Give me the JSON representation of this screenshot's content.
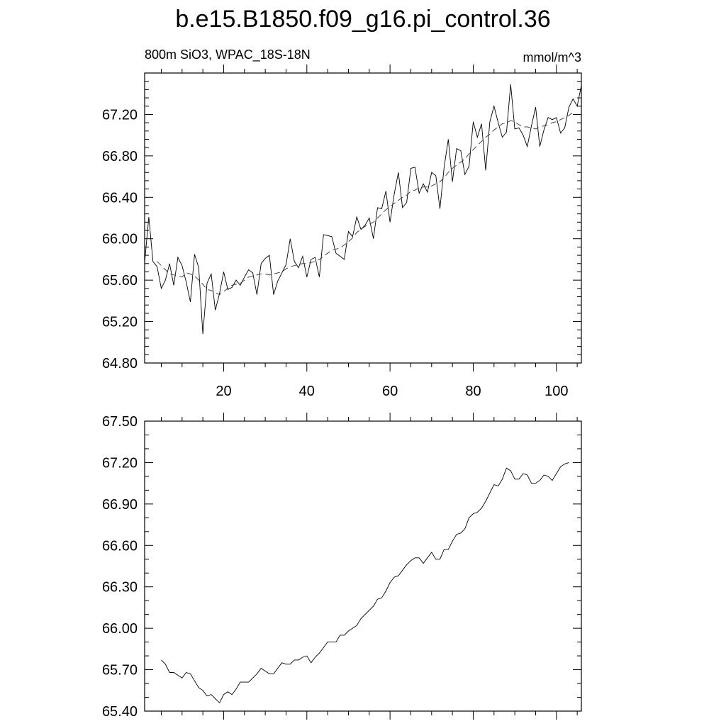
{
  "title": "b.e15.B1850.f09_g16.pi_control.36",
  "left_subtitle": "800m SiO3, WPAC_18S-18N",
  "right_subtitle": "mmol/m^3",
  "chart_data": [
    {
      "type": "line",
      "title": "b.e15.B1850.f09_g16.pi_control.36",
      "left_subtitle": "800m SiO3, WPAC_18S-18N",
      "right_subtitle": "mmol/m^3",
      "xlim": [
        1,
        106
      ],
      "ylim": [
        64.8,
        67.6
      ],
      "xticks": [
        20,
        40,
        60,
        80,
        100
      ],
      "xtick_labels": [
        "20",
        "40",
        "60",
        "80",
        "100"
      ],
      "yticks": [
        64.8,
        65.2,
        65.6,
        66.0,
        66.4,
        66.8,
        67.2
      ],
      "ytick_labels": [
        "64.80",
        "65.20",
        "65.60",
        "66.00",
        "66.40",
        "66.80",
        "67.20"
      ],
      "grid": false,
      "x": [
        1,
        2,
        3,
        4,
        5,
        6,
        7,
        8,
        9,
        10,
        11,
        12,
        13,
        14,
        15,
        16,
        17,
        18,
        19,
        20,
        21,
        22,
        23,
        24,
        25,
        26,
        27,
        28,
        29,
        30,
        31,
        32,
        33,
        34,
        35,
        36,
        37,
        38,
        39,
        40,
        41,
        42,
        43,
        44,
        45,
        46,
        47,
        48,
        49,
        50,
        51,
        52,
        53,
        54,
        55,
        56,
        57,
        58,
        59,
        60,
        61,
        62,
        63,
        64,
        65,
        66,
        67,
        68,
        69,
        70,
        71,
        72,
        73,
        74,
        75,
        76,
        77,
        78,
        79,
        80,
        81,
        82,
        83,
        84,
        85,
        86,
        87,
        88,
        89,
        90,
        91,
        92,
        93,
        94,
        95,
        96,
        97,
        98,
        99,
        100,
        101,
        102,
        103,
        104,
        105,
        106
      ],
      "series": [
        {
          "style": "solid",
          "values": [
            65.77,
            66.21,
            65.78,
            65.73,
            65.52,
            65.6,
            65.76,
            65.55,
            65.82,
            65.74,
            65.58,
            65.39,
            65.85,
            65.72,
            65.08,
            65.57,
            65.66,
            65.31,
            65.47,
            65.68,
            65.51,
            65.53,
            65.6,
            65.55,
            65.63,
            65.7,
            65.67,
            65.46,
            65.76,
            65.81,
            65.84,
            65.46,
            65.59,
            65.67,
            65.75,
            66.0,
            65.78,
            65.72,
            65.83,
            65.63,
            65.8,
            65.82,
            65.63,
            66.04,
            66.03,
            66.02,
            65.86,
            65.83,
            65.8,
            66.07,
            66.02,
            66.21,
            66.09,
            66.13,
            66.2,
            66.0,
            66.3,
            66.29,
            66.46,
            66.16,
            66.43,
            66.64,
            66.3,
            66.35,
            66.68,
            66.69,
            66.44,
            66.53,
            66.45,
            66.64,
            66.61,
            66.29,
            66.69,
            66.96,
            66.55,
            66.87,
            66.85,
            66.62,
            66.7,
            67.13,
            66.98,
            67.11,
            66.66,
            67.13,
            67.28,
            67.12,
            66.98,
            67.03,
            67.49,
            67.06,
            67.07,
            67.0,
            66.89,
            67.09,
            67.27,
            66.89,
            67.05,
            67.17,
            67.15,
            67.17,
            67.02,
            67.07,
            67.27,
            67.35,
            67.28,
            67.48
          ]
        },
        {
          "style": "dashed",
          "values": [
            null,
            null,
            null,
            65.78,
            65.74,
            65.7,
            65.66,
            65.65,
            65.64,
            65.63,
            65.67,
            65.66,
            65.64,
            65.6,
            65.56,
            65.51,
            65.5,
            65.48,
            65.46,
            65.49,
            65.52,
            65.55,
            65.56,
            65.57,
            65.6,
            65.63,
            65.64,
            65.65,
            65.66,
            65.66,
            65.65,
            65.66,
            65.67,
            65.68,
            65.71,
            65.73,
            65.74,
            65.75,
            65.76,
            65.76,
            65.77,
            65.78,
            65.8,
            65.83,
            65.86,
            65.89,
            65.9,
            65.91,
            65.94,
            65.97,
            66.01,
            66.06,
            66.09,
            66.12,
            66.14,
            66.16,
            66.2,
            66.24,
            66.28,
            66.31,
            66.34,
            66.37,
            66.4,
            66.42,
            66.46,
            66.47,
            66.49,
            66.5,
            66.5,
            66.51,
            66.53,
            66.55,
            66.59,
            66.64,
            66.68,
            66.71,
            66.74,
            66.77,
            66.82,
            66.86,
            66.9,
            66.94,
            66.98,
            67.01,
            67.05,
            67.08,
            67.11,
            67.12,
            67.14,
            67.13,
            67.1,
            67.08,
            67.08,
            67.07,
            67.06,
            67.08,
            67.09,
            67.1,
            67.12,
            67.13,
            67.15,
            67.17,
            67.19,
            67.22,
            null,
            null
          ]
        }
      ]
    },
    {
      "type": "line",
      "xlim": [
        1,
        106
      ],
      "ylim": [
        65.4,
        67.5
      ],
      "xticks": [
        20,
        40,
        60,
        80,
        100
      ],
      "xtick_labels": [],
      "yticks": [
        65.4,
        65.7,
        66.0,
        66.3,
        66.6,
        66.9,
        67.2,
        67.5
      ],
      "ytick_labels": [
        "65.40",
        "65.70",
        "66.00",
        "66.30",
        "66.60",
        "66.90",
        "67.20",
        "67.50"
      ],
      "grid": false,
      "x": [
        5,
        6,
        7,
        8,
        9,
        10,
        11,
        12,
        13,
        14,
        15,
        16,
        17,
        18,
        19,
        20,
        21,
        22,
        23,
        24,
        25,
        26,
        27,
        28,
        29,
        30,
        31,
        32,
        33,
        34,
        35,
        36,
        37,
        38,
        39,
        40,
        41,
        42,
        43,
        44,
        45,
        46,
        47,
        48,
        49,
        50,
        51,
        52,
        53,
        54,
        55,
        56,
        57,
        58,
        59,
        60,
        61,
        62,
        63,
        64,
        65,
        66,
        67,
        68,
        69,
        70,
        71,
        72,
        73,
        74,
        75,
        76,
        77,
        78,
        79,
        80,
        81,
        82,
        83,
        84,
        85,
        86,
        87,
        88,
        89,
        90,
        91,
        92,
        93,
        94,
        95,
        96,
        97,
        98,
        99,
        100,
        101,
        102,
        103
      ],
      "series": [
        {
          "style": "solid",
          "values": [
            65.77,
            65.74,
            65.68,
            65.68,
            65.66,
            65.64,
            65.68,
            65.67,
            65.62,
            65.57,
            65.55,
            65.51,
            65.52,
            65.49,
            65.46,
            65.52,
            65.54,
            65.52,
            65.56,
            65.61,
            65.61,
            65.61,
            65.64,
            65.67,
            65.71,
            65.69,
            65.67,
            65.67,
            65.71,
            65.75,
            65.74,
            65.74,
            65.77,
            65.77,
            65.79,
            65.8,
            65.75,
            65.79,
            65.82,
            65.86,
            65.9,
            65.9,
            65.9,
            65.95,
            65.95,
            65.98,
            66.0,
            66.02,
            66.07,
            66.1,
            66.13,
            66.16,
            66.21,
            66.22,
            66.27,
            66.33,
            66.37,
            66.38,
            66.42,
            66.46,
            66.49,
            66.51,
            66.51,
            66.47,
            66.51,
            66.55,
            66.5,
            66.5,
            66.57,
            66.57,
            66.63,
            66.68,
            66.69,
            66.72,
            66.8,
            66.83,
            66.84,
            66.87,
            66.92,
            66.98,
            67.04,
            67.03,
            67.08,
            67.16,
            67.14,
            67.08,
            67.08,
            67.12,
            67.11,
            67.05,
            67.05,
            67.07,
            67.11,
            67.1,
            67.07,
            67.12,
            67.17,
            67.19,
            67.2
          ]
        }
      ]
    }
  ]
}
